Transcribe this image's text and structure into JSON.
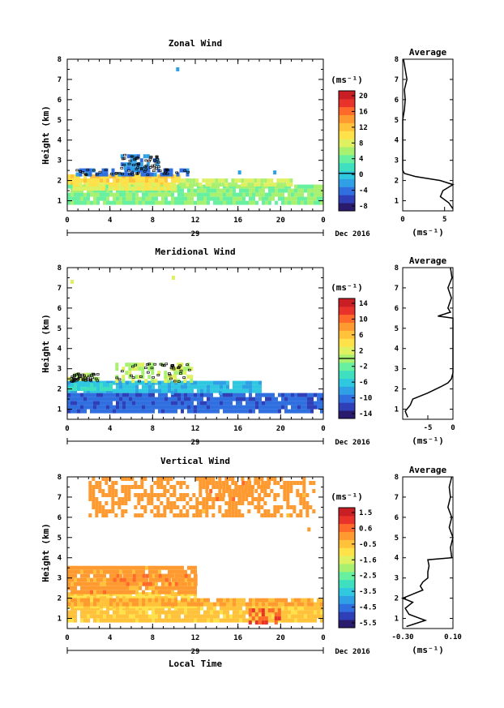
{
  "figure": {
    "colors": {
      "palette": [
        "#2b1b6e",
        "#2f3fb8",
        "#2f6fe0",
        "#2f9fe6",
        "#30c7e0",
        "#3ee0c0",
        "#66f0a0",
        "#a8f070",
        "#dff060",
        "#ffe24a",
        "#ffc23a",
        "#ff9a30",
        "#ff6a2a",
        "#e8322a",
        "#c81e24"
      ],
      "axis": "#000000",
      "profile_line": "#000000",
      "contour": "#000000"
    }
  },
  "chart_data": [
    {
      "type": "heatmap",
      "title": "Zonal Wind",
      "ylabel": "Height (km)",
      "xlim": [
        0,
        24
      ],
      "ylim": [
        0.5,
        8
      ],
      "x_ticks": [
        "0",
        "4",
        "8",
        "12",
        "16",
        "20",
        "0"
      ],
      "y_ticks": [
        "1",
        "2",
        "3",
        "4",
        "5",
        "6",
        "7",
        "8"
      ],
      "date_label": "29",
      "month_label": "Dec 2016",
      "colorbar": {
        "unit": "(ms⁻¹)",
        "range": [
          -10,
          22
        ],
        "ticks": [
          "20",
          "16",
          "12",
          "8",
          "4",
          "0",
          "-4",
          "-8"
        ],
        "marker": 0
      },
      "field": {
        "layers": [
          {
            "x0": 0,
            "x1": 10.5,
            "y0": 1.8,
            "y1": 2.3,
            "value": 11
          },
          {
            "x0": 0,
            "x1": 24,
            "y0": 0.8,
            "y1": 1.8,
            "value": 5
          },
          {
            "x0": 10.5,
            "x1": 21,
            "y0": 1.7,
            "y1": 2.1,
            "value": 7
          },
          {
            "x0": 0.5,
            "x1": 10,
            "y0": 1.6,
            "y1": 1.9,
            "value": 9
          }
        ],
        "patches": [
          {
            "x0": 0.8,
            "x1": 11.5,
            "y0": 2.3,
            "y1": 2.6,
            "value": -4
          },
          {
            "x0": 5,
            "x1": 8.5,
            "y0": 2.6,
            "y1": 3.3,
            "value": -3
          }
        ],
        "isolated": [
          {
            "x": 10.2,
            "y": 7.6,
            "value": -2
          },
          {
            "x": 16,
            "y": 2.5,
            "value": -2
          },
          {
            "x": 19.3,
            "y": 2.5,
            "value": -2
          }
        ]
      },
      "profile": {
        "title": "Average",
        "xlabel": "(ms⁻¹)",
        "xlim": [
          0,
          6
        ],
        "x_ticks": [
          "0",
          "5"
        ],
        "y_ticks": [
          "1",
          "2",
          "3",
          "4",
          "5",
          "6",
          "7",
          "8"
        ],
        "heights": [
          0.6,
          0.9,
          1.2,
          1.5,
          1.8,
          2.0,
          2.2,
          2.35,
          2.5,
          3.0,
          4.0,
          5.0,
          5.5,
          6.0,
          6.5,
          7.0,
          7.5,
          8.0
        ],
        "values": [
          6.0,
          5.5,
          4.5,
          4.8,
          6.0,
          4.5,
          1.5,
          0.2,
          0.0,
          0.0,
          0.0,
          0.0,
          0.2,
          0.3,
          0.2,
          0.5,
          0.3,
          0.1
        ]
      }
    },
    {
      "type": "heatmap",
      "title": "Meridional Wind",
      "ylabel": "Height (km)",
      "xlim": [
        0,
        24
      ],
      "ylim": [
        0.5,
        8
      ],
      "x_ticks": [
        "0",
        "4",
        "8",
        "12",
        "16",
        "20",
        "0"
      ],
      "y_ticks": [
        "1",
        "2",
        "3",
        "4",
        "5",
        "6",
        "7",
        "8"
      ],
      "date_label": "29",
      "month_label": "Dec 2016",
      "colorbar": {
        "unit": "(ms⁻¹)",
        "range": [
          -16,
          16
        ],
        "ticks": [
          "14",
          "10",
          "6",
          "2",
          "-2",
          "-6",
          "-10",
          "-14"
        ],
        "marker": 0
      },
      "field": {
        "layers": [
          {
            "x0": 0,
            "x1": 24,
            "y0": 0.8,
            "y1": 1.8,
            "value": -11
          },
          {
            "x0": 0,
            "x1": 18,
            "y0": 1.8,
            "y1": 2.4,
            "value": -7
          },
          {
            "x0": 0,
            "x1": 4,
            "y0": 1.9,
            "y1": 2.3,
            "value": -5
          }
        ],
        "patches": [
          {
            "x0": 0,
            "x1": 2.8,
            "y0": 2.4,
            "y1": 2.8,
            "value": 1
          },
          {
            "x0": 4.5,
            "x1": 11.5,
            "y0": 2.4,
            "y1": 3.3,
            "value": 1
          }
        ],
        "isolated": [
          {
            "x": 0.3,
            "y": 7.4,
            "value": 2
          },
          {
            "x": 9.8,
            "y": 7.6,
            "value": 2
          },
          {
            "x": 9.7,
            "y": 1.9,
            "value": -8
          },
          {
            "x": 14.2,
            "y": 1.9,
            "value": -8
          }
        ]
      },
      "profile": {
        "title": "Average",
        "xlabel": "(ms⁻¹)",
        "xlim": [
          -10,
          0
        ],
        "x_ticks": [
          "-5",
          "0"
        ],
        "y_ticks": [
          "1",
          "2",
          "3",
          "4",
          "5",
          "6",
          "7",
          "8"
        ],
        "heights": [
          0.6,
          0.9,
          1.2,
          1.5,
          1.8,
          2.1,
          2.3,
          2.5,
          2.8,
          3.2,
          4.0,
          5.0,
          5.5,
          5.6,
          5.8,
          6.0,
          6.5,
          7.0,
          7.5,
          8.0
        ],
        "values": [
          -9.0,
          -9.5,
          -8.5,
          -8.0,
          -5.0,
          -2.5,
          -1.0,
          -0.3,
          0.0,
          0.0,
          0.0,
          0.0,
          0.0,
          -3.0,
          -0.5,
          -1.0,
          -0.3,
          -1.0,
          -0.2,
          -0.5
        ]
      }
    },
    {
      "type": "heatmap",
      "title": "Vertical Wind",
      "xlabel": "Local Time",
      "ylabel": "Height (km)",
      "xlim": [
        0,
        24
      ],
      "ylim": [
        0.5,
        8
      ],
      "x_ticks": [
        "0",
        "4",
        "8",
        "12",
        "16",
        "20",
        "0"
      ],
      "y_ticks": [
        "1",
        "2",
        "3",
        "4",
        "5",
        "6",
        "7",
        "8"
      ],
      "date_label": "29",
      "month_label": "Dec 2016",
      "colorbar": {
        "unit": "(ms⁻¹)",
        "range": [
          -6.0,
          2.0
        ],
        "ticks": [
          "1.5",
          "0.6",
          "-0.5",
          "-1.6",
          "-2.5",
          "-3.5",
          "-4.5",
          "-5.5"
        ],
        "marker": null
      },
      "field": {
        "layers": [
          {
            "x0": 0,
            "x1": 24,
            "y0": 0.8,
            "y1": 1.6,
            "value": -0.5
          },
          {
            "x0": 0,
            "x1": 12,
            "y0": 1.6,
            "y1": 2.3,
            "value": -0.8
          },
          {
            "x0": 0,
            "x1": 24,
            "y0": 1.6,
            "y1": 2.0,
            "value": -0.1
          },
          {
            "x0": 0,
            "x1": 12,
            "y0": 2.3,
            "y1": 3.6,
            "value": 0.1
          }
        ],
        "patches": [
          {
            "x0": 4,
            "x1": 12,
            "y0": 2.6,
            "y1": 3.2,
            "value": 0.3
          },
          {
            "x0": 17,
            "x1": 20,
            "y0": 0.8,
            "y1": 1.5,
            "value": 0.9
          },
          {
            "x0": 2,
            "x1": 23,
            "y0": 6.0,
            "y1": 8.0,
            "value": 0.1
          },
          {
            "x0": 13,
            "x1": 19,
            "y0": 6.8,
            "y1": 7.8,
            "value": 0.2
          }
        ],
        "isolated": [
          {
            "x": 3.5,
            "y": 6.2,
            "value": 0.0
          },
          {
            "x": 22.5,
            "y": 5.5,
            "value": 0.1
          }
        ]
      },
      "profile": {
        "title": "Average",
        "xlabel": "(ms⁻¹)",
        "xlim": [
          -0.3,
          0.1
        ],
        "x_ticks": [
          "-0.30",
          "0.10"
        ],
        "y_ticks": [
          "1",
          "2",
          "3",
          "4",
          "5",
          "6",
          "7",
          "8"
        ],
        "heights": [
          0.6,
          0.9,
          1.2,
          1.5,
          1.8,
          2.0,
          2.2,
          2.4,
          2.6,
          2.8,
          3.0,
          3.3,
          3.6,
          3.9,
          4.0,
          4.5,
          5.0,
          5.5,
          6.0,
          6.5,
          7.0,
          7.5,
          8.0
        ],
        "values": [
          -0.27,
          -0.12,
          -0.25,
          -0.28,
          -0.22,
          -0.3,
          -0.22,
          -0.14,
          -0.16,
          -0.14,
          -0.1,
          -0.1,
          -0.09,
          -0.1,
          0.09,
          0.08,
          0.1,
          0.07,
          0.09,
          0.06,
          0.08,
          0.07,
          0.09
        ]
      }
    }
  ]
}
